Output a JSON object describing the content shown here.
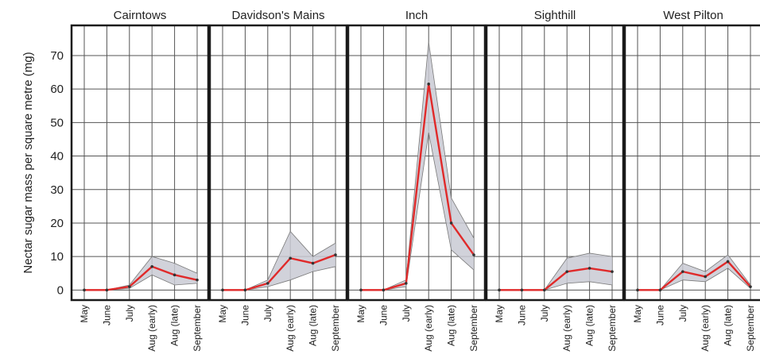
{
  "chart_data": {
    "type": "line",
    "ylabel": "Nectar sugar mass per square metre (mg)",
    "ylim": [
      -3,
      79
    ],
    "yticks": [
      0,
      10,
      20,
      30,
      40,
      50,
      60,
      70
    ],
    "categories": [
      "May",
      "June",
      "July",
      "Aug (early)",
      "Aug (late)",
      "September"
    ],
    "grid": true,
    "colors": {
      "mean_line": "#e02a2a",
      "band": "#c9cad4",
      "frame": "#1a1a1a",
      "grid": "#555555",
      "bound_line": "#7a7a7a"
    },
    "panels": [
      {
        "title": "Cairntows",
        "mean": [
          0,
          0,
          1,
          7,
          4.5,
          3
        ],
        "lower": [
          0,
          0,
          0.5,
          4.5,
          1.5,
          2
        ],
        "upper": [
          0,
          0,
          1.5,
          10,
          8,
          5
        ]
      },
      {
        "title": "Davidson's Mains",
        "mean": [
          0,
          0,
          2,
          9.5,
          8,
          10.5
        ],
        "lower": [
          0,
          0,
          1,
          3,
          5.5,
          7
        ],
        "upper": [
          0,
          0,
          3,
          17.5,
          10,
          14
        ]
      },
      {
        "title": "Inch",
        "mean": [
          0,
          0,
          2,
          61.5,
          20,
          10.5
        ],
        "lower": [
          0,
          0,
          1,
          47,
          12,
          6
        ],
        "upper": [
          0,
          0,
          3,
          74,
          27.5,
          15.5
        ]
      },
      {
        "title": "Sighthill",
        "mean": [
          0,
          0,
          0,
          5.5,
          6.5,
          5.5
        ],
        "lower": [
          0,
          0,
          0,
          2,
          2.5,
          1.5
        ],
        "upper": [
          0,
          0,
          0,
          9.5,
          11,
          10
        ]
      },
      {
        "title": "West Pilton",
        "mean": [
          0,
          0,
          5.5,
          4,
          8.5,
          1
        ],
        "lower": [
          0,
          0,
          3,
          2.5,
          6.5,
          0.5
        ],
        "upper": [
          0,
          0,
          8,
          5.5,
          10.5,
          1.5
        ]
      }
    ]
  }
}
